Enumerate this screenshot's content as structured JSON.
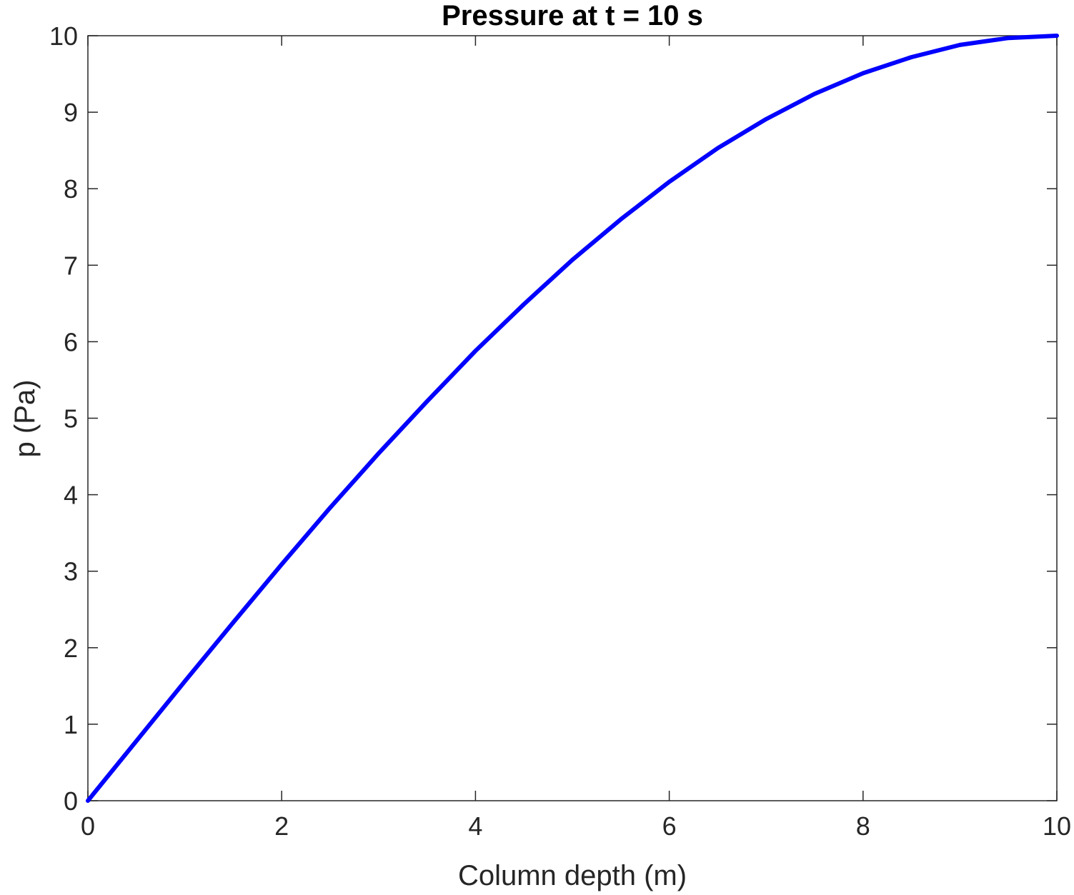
{
  "chart_data": {
    "type": "line",
    "title": "Pressure at t = 10 s",
    "xlabel": "Column depth (m)",
    "ylabel": "p (Pa)",
    "xlim": [
      0,
      10
    ],
    "ylim": [
      0,
      10
    ],
    "xticks": [
      "0",
      "2",
      "4",
      "6",
      "8",
      "10"
    ],
    "yticks": [
      "0",
      "1",
      "2",
      "3",
      "4",
      "5",
      "6",
      "7",
      "8",
      "9",
      "10"
    ],
    "grid": false,
    "box": true,
    "series": [
      {
        "color": "#0000ff",
        "x": [
          0,
          0.5,
          1,
          1.5,
          2,
          2.5,
          3,
          3.5,
          4,
          4.5,
          5,
          5.5,
          6,
          6.5,
          7,
          7.5,
          8,
          8.5,
          9,
          9.5,
          10
        ],
        "y": [
          0,
          0.78,
          1.56,
          2.33,
          3.09,
          3.83,
          4.54,
          5.22,
          5.88,
          6.49,
          7.07,
          7.6,
          8.09,
          8.53,
          8.91,
          9.24,
          9.51,
          9.72,
          9.88,
          9.97,
          10
        ]
      }
    ]
  }
}
